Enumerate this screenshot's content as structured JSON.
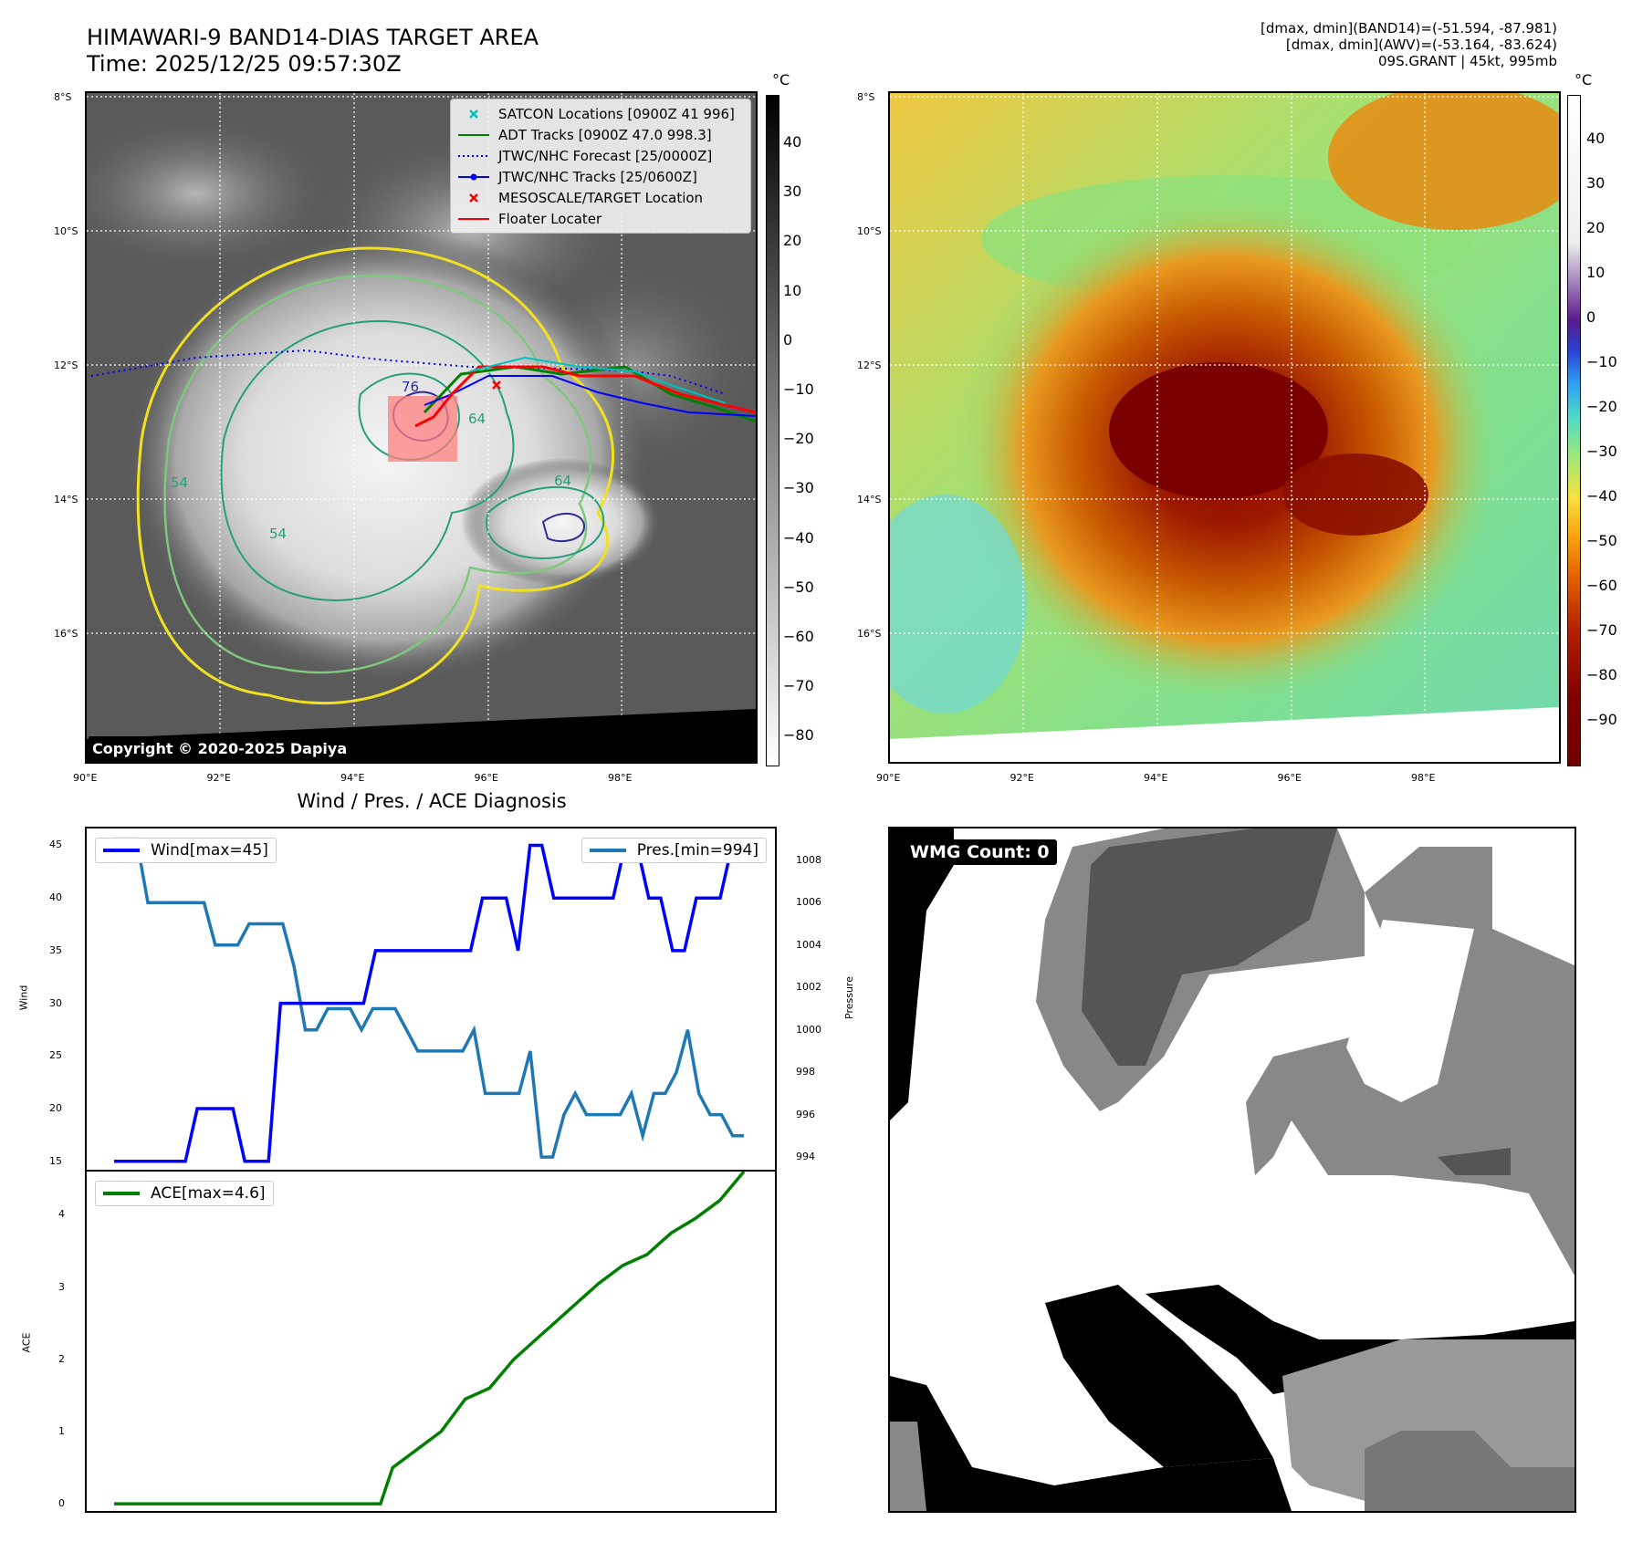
{
  "header": {
    "title_line1": "HIMAWARI-9 BAND14-DIAS TARGET AREA",
    "title_line2": "Time: 2025/12/25 09:57:30Z",
    "right_line1": "[dmax, dmin](BAND14)=(-51.594, -87.981)",
    "right_line2": "[dmax, dmin](AWV)=(-53.164, -83.624)",
    "right_line3": "09S.GRANT | 45kt, 995mb"
  },
  "map": {
    "lat_labels": [
      "8°S",
      "10°S",
      "12°S",
      "14°S",
      "16°S"
    ],
    "lon_labels": [
      "90°E",
      "92°E",
      "94°E",
      "96°E",
      "98°E"
    ],
    "copyright": "Copyright © 2020-2025 Dapiya",
    "contour_labels": [
      "76",
      "64",
      "54",
      "54",
      "64"
    ],
    "legend": [
      {
        "label": "SATCON Locations [0900Z 41 996]",
        "color": "#00c0c0",
        "kind": "x"
      },
      {
        "label": "ADT Tracks [0900Z 47.0 998.3]",
        "color": "#008000",
        "kind": "line"
      },
      {
        "label": "JTWC/NHC Forecast [25/0000Z]",
        "color": "#0000ff",
        "kind": "dotted"
      },
      {
        "label": "JTWC/NHC Tracks [25/0600Z]",
        "color": "#0000ff",
        "kind": "dotline"
      },
      {
        "label": "MESOSCALE/TARGET Location",
        "color": "#ff0000",
        "kind": "x"
      },
      {
        "label": "Floater Locater",
        "color": "#ff0000",
        "kind": "line"
      }
    ]
  },
  "colorbar_gray": {
    "unit": "°C",
    "ticks": [
      "40",
      "30",
      "20",
      "10",
      "0",
      "−10",
      "−20",
      "−30",
      "−40",
      "−50",
      "−60",
      "−70",
      "−80"
    ]
  },
  "colorbar_color": {
    "unit": "°C",
    "ticks": [
      "40",
      "30",
      "20",
      "10",
      "0",
      "−10",
      "−20",
      "−30",
      "−40",
      "−50",
      "−60",
      "−70",
      "−80",
      "−90"
    ]
  },
  "chart_data": [
    {
      "type": "line",
      "title": "Wind / Pres. / ACE Diagnosis",
      "ylabel": "Wind",
      "ylabel_right": "Pressure",
      "ylim": [
        14.2,
        46.6
      ],
      "ylim_right": [
        993.4,
        1009.5
      ],
      "yticks": [
        15,
        20,
        25,
        30,
        35,
        40,
        45
      ],
      "yticks_right": [
        994,
        996,
        998,
        1000,
        1002,
        1004,
        1006,
        1008
      ],
      "series": [
        {
          "name": "Wind[max=45]",
          "color": "#0000ff",
          "values": [
            15,
            15,
            15,
            15,
            15,
            15,
            15,
            20,
            20,
            20,
            20,
            15,
            15,
            15,
            30,
            30,
            30,
            30,
            30,
            30,
            30,
            30,
            35,
            35,
            35,
            35,
            35,
            35,
            35,
            35,
            35,
            40,
            40,
            40,
            35,
            45,
            45,
            40,
            40,
            40,
            40,
            40,
            40,
            45,
            45,
            40,
            40,
            35,
            35,
            40,
            40,
            40,
            45,
            45
          ]
        },
        {
          "name": "Pres.[min=994]",
          "color": "#1f77b4",
          "axis": "right",
          "values": [
            1009,
            1009,
            1009,
            1006,
            1006,
            1006,
            1006,
            1006,
            1006,
            1004,
            1004,
            1004,
            1005,
            1005,
            1005,
            1005,
            1003,
            1000,
            1000,
            1001,
            1001,
            1001,
            1000,
            1001,
            1001,
            1001,
            1000,
            999,
            999,
            999,
            999,
            999,
            1000,
            997,
            997,
            997,
            997,
            999,
            994,
            994,
            996,
            997,
            996,
            996,
            996,
            996,
            997,
            995,
            997,
            997,
            998,
            1000,
            997,
            996,
            996,
            995,
            995
          ]
        }
      ]
    },
    {
      "type": "line",
      "ylabel": "ACE",
      "ylim": [
        -0.1,
        4.6
      ],
      "yticks": [
        0,
        1,
        2,
        3,
        4
      ],
      "series": [
        {
          "name": "ACE[max=4.6]",
          "color": "#008000",
          "x": [
            0,
            22,
            23,
            27,
            29,
            31,
            33,
            35,
            36,
            38,
            40,
            42,
            44,
            45,
            46,
            48,
            50,
            52
          ],
          "values": [
            0,
            0,
            0.5,
            1.0,
            1.45,
            1.6,
            2.0,
            2.3,
            2.45,
            2.75,
            3.05,
            3.3,
            3.45,
            3.6,
            3.75,
            3.95,
            4.2,
            4.6
          ]
        }
      ]
    }
  ],
  "wmg": {
    "badge": "WMG Count: 0"
  }
}
